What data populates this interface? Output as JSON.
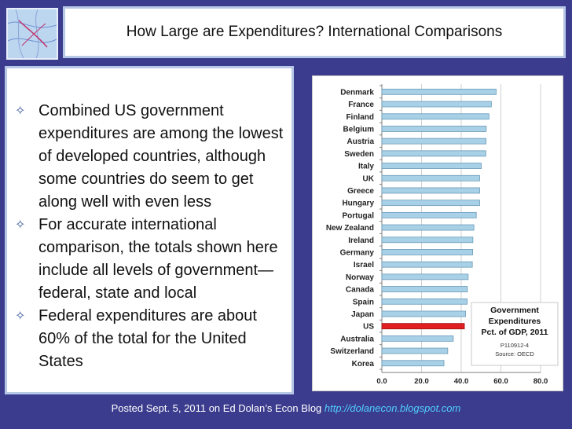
{
  "slide": {
    "title": "How Large are Expenditures? International Comparisons",
    "bullets": [
      "Combined US government expenditures are among the lowest of developed countries, although some countries do seem to get along well with even less",
      "For accurate international comparison, the totals shown here include all levels of government—federal, state and local",
      "Federal expenditures are about 60% of the total for the United States"
    ],
    "footer_text": "Posted Sept. 5, 2011 on Ed Dolan’s Econ Blog",
    "footer_link": "http://dolanecon.blogspot.com"
  },
  "chart_data": {
    "type": "bar",
    "orientation": "horizontal",
    "categories": [
      "Denmark",
      "France",
      "Finland",
      "Belgium",
      "Austria",
      "Sweden",
      "Italy",
      "UK",
      "Greece",
      "Hungary",
      "Portugal",
      "New Zealand",
      "Ireland",
      "Germany",
      "Israel",
      "Norway",
      "Canada",
      "Spain",
      "Japan",
      "US",
      "Australia",
      "Switzerland",
      "Korea"
    ],
    "values": [
      57.6,
      55.2,
      54.0,
      52.6,
      52.5,
      52.4,
      50.1,
      49.3,
      49.3,
      49.3,
      47.6,
      46.4,
      45.9,
      45.8,
      45.6,
      43.5,
      43.1,
      43.0,
      42.2,
      41.6,
      36.0,
      33.2,
      31.3
    ],
    "highlight": "US",
    "colors": {
      "bar": "#a8d0e6",
      "bar_edge": "#6a9bb8",
      "highlight": "#e02020"
    },
    "xlim": [
      0,
      80
    ],
    "xticks": [
      "0.0",
      "20.0",
      "40.0",
      "60.0",
      "80.0"
    ],
    "grid": true,
    "legend_box": {
      "lines": [
        "Government",
        "Expenditures",
        "Pct. of GDP, 2011"
      ],
      "code": "P110912-4",
      "source": "Source: OECD",
      "position": "bottom-right"
    }
  }
}
